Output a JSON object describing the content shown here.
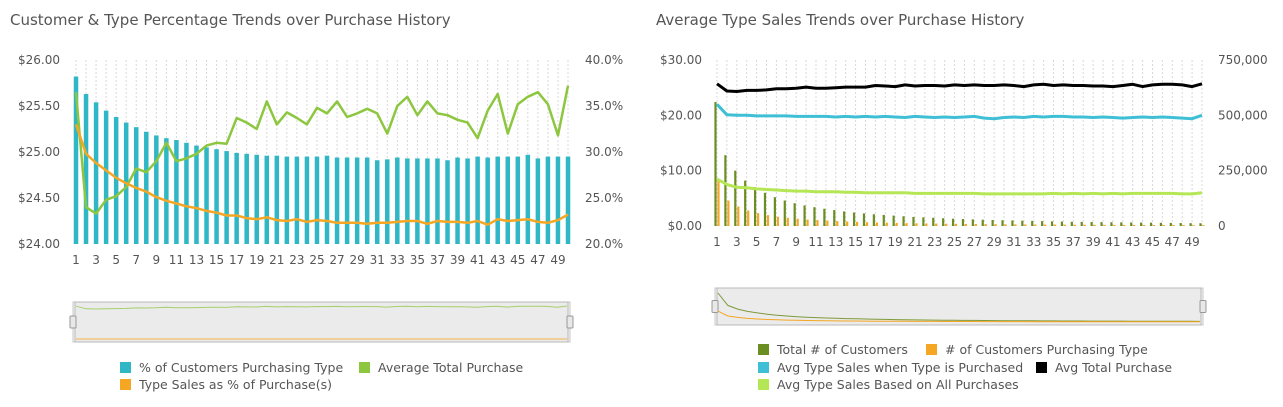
{
  "left_title": "Customer & Type Percentage Trends over Purchase History",
  "right_title": "Average Type Sales Trends over Purchase History",
  "legend_left": [
    {
      "label": "% of Customers Purchasing Type",
      "color": "#2fb7c6"
    },
    {
      "label": "Average Total Purchase",
      "color": "#8dc63f"
    },
    {
      "label": "Type Sales as % of Purchase(s)",
      "color": "#f5a623"
    }
  ],
  "legend_right": [
    {
      "label": "Total # of Customers",
      "color": "#6b8e23"
    },
    {
      "label": "# of Customers Purchasing Type",
      "color": "#f5a623"
    },
    {
      "label": "Avg Type Sales when Type is Purchased",
      "color": "#3fbfd6"
    },
    {
      "label": "Avg Total Purchase",
      "color": "#000000"
    },
    {
      "label": "Avg Type Sales Based on All Purchases",
      "color": "#b5e655"
    }
  ],
  "chart_data": [
    {
      "type": "bar+line",
      "title": "Customer & Type Percentage Trends over Purchase History",
      "x": [
        1,
        2,
        3,
        4,
        5,
        6,
        7,
        8,
        9,
        10,
        11,
        12,
        13,
        14,
        15,
        16,
        17,
        18,
        19,
        20,
        21,
        22,
        23,
        24,
        25,
        26,
        27,
        28,
        29,
        30,
        31,
        32,
        33,
        34,
        35,
        36,
        37,
        38,
        39,
        40,
        41,
        42,
        43,
        44,
        45,
        46,
        47,
        48,
        49,
        50
      ],
      "x_tick_labels": [
        "1",
        "3",
        "5",
        "7",
        "9",
        "11",
        "13",
        "15",
        "17",
        "19",
        "21",
        "23",
        "25",
        "27",
        "29",
        "31",
        "33",
        "35",
        "37",
        "39",
        "41",
        "43",
        "45",
        "47",
        "49"
      ],
      "left_axis": {
        "ticks": [
          "$24.00",
          "$24.50",
          "$25.00",
          "$25.50",
          "$26.00"
        ],
        "range": [
          24,
          26
        ]
      },
      "right_axis": {
        "ticks": [
          "20.0%",
          "25.0%",
          "30.0%",
          "35.0%",
          "40.0%"
        ],
        "range": [
          20,
          40
        ]
      },
      "grid": "vertical dotted",
      "series": [
        {
          "name": "% of Customers Purchasing Type",
          "kind": "bar",
          "axis": "right",
          "color": "#2fb7c6",
          "values": [
            38.2,
            36.3,
            35.4,
            34.5,
            33.8,
            33.2,
            32.7,
            32.2,
            31.8,
            31.5,
            31.3,
            31.0,
            30.7,
            30.5,
            30.3,
            30.1,
            29.9,
            29.8,
            29.7,
            29.6,
            29.6,
            29.5,
            29.5,
            29.5,
            29.5,
            29.6,
            29.4,
            29.4,
            29.4,
            29.4,
            29.1,
            29.2,
            29.4,
            29.3,
            29.3,
            29.3,
            29.3,
            29.1,
            29.4,
            29.3,
            29.5,
            29.4,
            29.5,
            29.5,
            29.5,
            29.7,
            29.3,
            29.5,
            29.5,
            29.5
          ]
        },
        {
          "name": "Average Total Purchase",
          "kind": "line",
          "axis": "left",
          "color": "#8dc63f",
          "values": [
            25.65,
            24.4,
            24.33,
            24.48,
            24.52,
            24.62,
            24.82,
            24.78,
            24.9,
            25.1,
            24.9,
            24.93,
            24.98,
            25.07,
            25.1,
            25.09,
            25.37,
            25.32,
            25.25,
            25.55,
            25.3,
            25.43,
            25.37,
            25.3,
            25.48,
            25.42,
            25.55,
            25.38,
            25.42,
            25.47,
            25.42,
            25.2,
            25.5,
            25.6,
            25.4,
            25.55,
            25.42,
            25.4,
            25.35,
            25.32,
            25.15,
            25.45,
            25.63,
            25.2,
            25.52,
            25.6,
            25.65,
            25.52,
            25.18,
            25.72
          ]
        },
        {
          "name": "Type Sales as % of Purchase(s)",
          "kind": "line",
          "axis": "right",
          "color": "#f5a623",
          "values": [
            33.0,
            29.8,
            28.8,
            28.0,
            27.2,
            26.6,
            26.1,
            25.7,
            25.1,
            24.7,
            24.4,
            24.1,
            23.9,
            23.6,
            23.4,
            23.1,
            23.1,
            22.8,
            22.7,
            22.9,
            22.6,
            22.5,
            22.7,
            22.4,
            22.6,
            22.5,
            22.3,
            22.3,
            22.3,
            22.2,
            22.3,
            22.3,
            22.4,
            22.5,
            22.5,
            22.2,
            22.5,
            22.4,
            22.4,
            22.3,
            22.5,
            22.1,
            22.7,
            22.5,
            22.6,
            22.7,
            22.4,
            22.3,
            22.6,
            23.2
          ]
        }
      ]
    },
    {
      "type": "bar+line",
      "title": "Average Type Sales Trends over Purchase History",
      "x": [
        1,
        2,
        3,
        4,
        5,
        6,
        7,
        8,
        9,
        10,
        11,
        12,
        13,
        14,
        15,
        16,
        17,
        18,
        19,
        20,
        21,
        22,
        23,
        24,
        25,
        26,
        27,
        28,
        29,
        30,
        31,
        32,
        33,
        34,
        35,
        36,
        37,
        38,
        39,
        40,
        41,
        42,
        43,
        44,
        45,
        46,
        47,
        48,
        49,
        50
      ],
      "x_tick_labels": [
        "1",
        "3",
        "5",
        "7",
        "9",
        "11",
        "13",
        "15",
        "17",
        "19",
        "21",
        "23",
        "25",
        "27",
        "29",
        "31",
        "33",
        "35",
        "37",
        "39",
        "41",
        "43",
        "45",
        "47",
        "49"
      ],
      "left_axis": {
        "ticks": [
          "$0.00",
          "$10.00",
          "$20.00",
          "$30.00"
        ],
        "range": [
          0,
          30
        ]
      },
      "right_axis": {
        "ticks": [
          "0",
          "250,000",
          "500,000",
          "750,000"
        ],
        "range": [
          0,
          750000
        ]
      },
      "grid": "vertical dotted",
      "series": [
        {
          "name": "Total # of Customers",
          "kind": "bar",
          "axis": "right",
          "color": "#6b8e23",
          "values": [
            560000,
            320000,
            250000,
            205000,
            175000,
            150000,
            130000,
            115000,
            103000,
            93000,
            85000,
            78000,
            72000,
            66000,
            61000,
            57000,
            53000,
            50000,
            47000,
            44000,
            41000,
            39000,
            37000,
            35000,
            33000,
            31500,
            30000,
            28500,
            27000,
            26000,
            25000,
            24000,
            23000,
            22000,
            21000,
            20000,
            19000,
            18500,
            18000,
            17500,
            17000,
            16500,
            16000,
            15500,
            15000,
            14500,
            14000,
            13500,
            13000,
            12500
          ]
        },
        {
          "name": "# of Customers Purchasing Type",
          "kind": "bar",
          "axis": "right",
          "color": "#f5a623",
          "values": [
            210000,
            115000,
            88000,
            70000,
            58000,
            49000,
            42000,
            37000,
            33000,
            29000,
            26500,
            24000,
            22000,
            20000,
            18500,
            17000,
            16000,
            15000,
            14000,
            13000,
            12200,
            11500,
            11000,
            10300,
            9800,
            9300,
            8800,
            8400,
            8000,
            7600,
            7300,
            7000,
            6700,
            6400,
            6200,
            5900,
            5700,
            5500,
            5300,
            5100,
            5000,
            4800,
            4700,
            4500,
            4400,
            4300,
            4100,
            4000,
            3900,
            3800
          ]
        },
        {
          "name": "Avg Type Sales when Type is Purchased",
          "kind": "line",
          "axis": "left",
          "color": "#3fbfd6",
          "values": [
            22.0,
            20.1,
            20.0,
            20.0,
            19.9,
            19.9,
            19.9,
            19.9,
            19.8,
            19.8,
            19.8,
            19.8,
            19.7,
            19.8,
            19.7,
            19.8,
            19.7,
            19.8,
            19.7,
            19.6,
            19.8,
            19.7,
            19.6,
            19.7,
            19.6,
            19.7,
            19.8,
            19.5,
            19.4,
            19.6,
            19.7,
            19.6,
            19.8,
            19.7,
            19.8,
            19.8,
            19.7,
            19.7,
            19.6,
            19.7,
            19.6,
            19.5,
            19.6,
            19.7,
            19.6,
            19.7,
            19.6,
            19.5,
            19.4,
            20.0
          ]
        },
        {
          "name": "Avg Total Purchase",
          "kind": "line",
          "axis": "left",
          "color": "#000000",
          "values": [
            25.7,
            24.4,
            24.3,
            24.5,
            24.5,
            24.6,
            24.8,
            24.8,
            24.9,
            25.1,
            24.9,
            24.9,
            25.0,
            25.1,
            25.1,
            25.1,
            25.4,
            25.3,
            25.2,
            25.5,
            25.3,
            25.4,
            25.4,
            25.3,
            25.5,
            25.4,
            25.5,
            25.4,
            25.4,
            25.5,
            25.4,
            25.2,
            25.5,
            25.6,
            25.4,
            25.5,
            25.4,
            25.4,
            25.3,
            25.3,
            25.2,
            25.4,
            25.6,
            25.2,
            25.5,
            25.6,
            25.6,
            25.5,
            25.2,
            25.7
          ]
        },
        {
          "name": "Avg Type Sales Based on All Purchases",
          "kind": "line",
          "axis": "left",
          "color": "#b5e655",
          "values": [
            8.5,
            7.5,
            7.0,
            6.9,
            6.7,
            6.6,
            6.5,
            6.4,
            6.3,
            6.3,
            6.2,
            6.2,
            6.2,
            6.1,
            6.1,
            6.0,
            6.0,
            6.0,
            6.0,
            6.0,
            5.9,
            5.9,
            5.9,
            5.9,
            5.9,
            5.9,
            5.9,
            5.8,
            5.8,
            5.8,
            5.8,
            5.8,
            5.8,
            5.8,
            5.9,
            5.8,
            5.9,
            5.8,
            5.9,
            5.8,
            5.9,
            5.8,
            5.9,
            5.9,
            5.9,
            5.9,
            5.9,
            5.8,
            5.8,
            6.0
          ]
        }
      ]
    }
  ]
}
